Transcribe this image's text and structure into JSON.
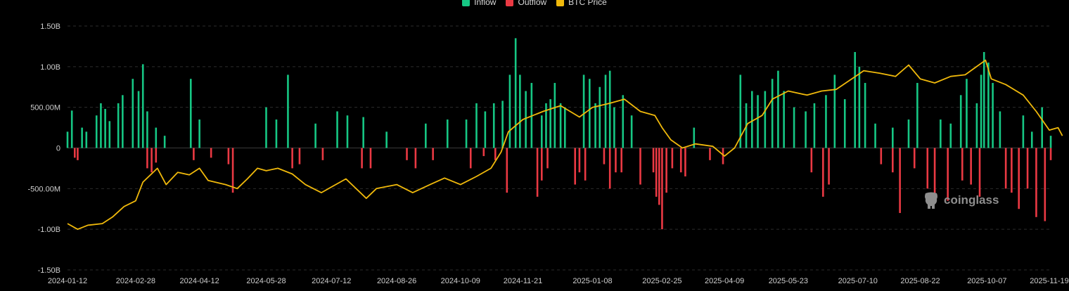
{
  "legend": [
    {
      "label": "Inflow",
      "color": "#16c784"
    },
    {
      "label": "Outflow",
      "color": "#ea3943"
    },
    {
      "label": "BTC Price",
      "color": "#f0b90b"
    }
  ],
  "watermark": {
    "text": "coinglass",
    "icon": "coinglass-logo-icon"
  },
  "chart_data": {
    "type": "bar",
    "title": "",
    "xlabel": "",
    "ylabel": "",
    "ylim": [
      -1.5,
      1.5
    ],
    "y_unit": "B",
    "yticks": [
      {
        "value": 1.5,
        "label": "1.50B"
      },
      {
        "value": 1.0,
        "label": "1.00B"
      },
      {
        "value": 0.5,
        "label": "500.00M"
      },
      {
        "value": 0,
        "label": "0"
      },
      {
        "value": -0.5,
        "label": "-500.00M"
      },
      {
        "value": -1.0,
        "label": "-1.00B"
      },
      {
        "value": -1.5,
        "label": "-1.50B"
      }
    ],
    "xticks": [
      "2024-01-12",
      "2024-02-28",
      "2024-04-12",
      "2024-05-28",
      "2024-07-12",
      "2024-08-26",
      "2024-10-09",
      "2024-11-21",
      "2025-01-08",
      "2025-02-25",
      "2025-04-09",
      "2025-05-23",
      "2025-07-10",
      "2025-08-22",
      "2025-10-07",
      "2025-11-19"
    ],
    "grid": true,
    "legend_position": "top-center",
    "series": [
      {
        "name": "Inflow",
        "color": "#16c784",
        "points": [
          [
            "2024-01-12",
            0.2
          ],
          [
            "2024-01-15",
            0.46
          ],
          [
            "2024-01-22",
            0.25
          ],
          [
            "2024-01-25",
            0.2
          ],
          [
            "2024-02-01",
            0.4
          ],
          [
            "2024-02-04",
            0.55
          ],
          [
            "2024-02-07",
            0.48
          ],
          [
            "2024-02-10",
            0.33
          ],
          [
            "2024-02-16",
            0.55
          ],
          [
            "2024-02-19",
            0.65
          ],
          [
            "2024-02-26",
            0.85
          ],
          [
            "2024-03-01",
            0.7
          ],
          [
            "2024-03-04",
            1.03
          ],
          [
            "2024-03-07",
            0.45
          ],
          [
            "2024-03-13",
            0.25
          ],
          [
            "2024-03-19",
            0.15
          ],
          [
            "2024-04-06",
            0.85
          ],
          [
            "2024-04-12",
            0.35
          ],
          [
            "2024-05-28",
            0.5
          ],
          [
            "2024-06-04",
            0.35
          ],
          [
            "2024-06-12",
            0.9
          ],
          [
            "2024-07-01",
            0.3
          ],
          [
            "2024-07-16",
            0.45
          ],
          [
            "2024-07-23",
            0.4
          ],
          [
            "2024-08-03",
            0.38
          ],
          [
            "2024-08-19",
            0.2
          ],
          [
            "2024-09-15",
            0.3
          ],
          [
            "2024-09-30",
            0.35
          ],
          [
            "2024-10-13",
            0.35
          ],
          [
            "2024-10-20",
            0.55
          ],
          [
            "2024-10-26",
            0.45
          ],
          [
            "2024-11-01",
            0.55
          ],
          [
            "2024-11-07",
            0.58
          ],
          [
            "2024-11-12",
            0.9
          ],
          [
            "2024-11-16",
            1.35
          ],
          [
            "2024-11-19",
            0.9
          ],
          [
            "2024-11-23",
            0.7
          ],
          [
            "2024-11-27",
            0.8
          ],
          [
            "2024-12-04",
            0.4
          ],
          [
            "2024-12-07",
            0.55
          ],
          [
            "2024-12-10",
            0.6
          ],
          [
            "2024-12-13",
            0.8
          ],
          [
            "2024-12-17",
            0.55
          ],
          [
            "2024-12-20",
            0.5
          ],
          [
            "2025-01-02",
            0.9
          ],
          [
            "2025-01-06",
            0.85
          ],
          [
            "2025-01-10",
            0.55
          ],
          [
            "2025-01-13",
            0.75
          ],
          [
            "2025-01-17",
            0.9
          ],
          [
            "2025-01-20",
            0.95
          ],
          [
            "2025-01-23",
            0.5
          ],
          [
            "2025-01-29",
            0.65
          ],
          [
            "2025-02-04",
            0.4
          ],
          [
            "2025-03-19",
            0.25
          ],
          [
            "2025-04-20",
            0.9
          ],
          [
            "2025-04-24",
            0.55
          ],
          [
            "2025-04-28",
            0.7
          ],
          [
            "2025-05-02",
            0.65
          ],
          [
            "2025-05-07",
            0.7
          ],
          [
            "2025-05-12",
            0.85
          ],
          [
            "2025-05-16",
            0.95
          ],
          [
            "2025-05-20",
            0.7
          ],
          [
            "2025-05-27",
            0.5
          ],
          [
            "2025-06-04",
            0.45
          ],
          [
            "2025-06-10",
            0.55
          ],
          [
            "2025-06-18",
            0.65
          ],
          [
            "2025-06-24",
            0.9
          ],
          [
            "2025-07-01",
            0.6
          ],
          [
            "2025-07-08",
            1.18
          ],
          [
            "2025-07-11",
            1.0
          ],
          [
            "2025-07-15",
            0.8
          ],
          [
            "2025-07-22",
            0.3
          ],
          [
            "2025-08-03",
            0.25
          ],
          [
            "2025-08-14",
            0.35
          ],
          [
            "2025-08-20",
            0.8
          ],
          [
            "2025-09-05",
            0.35
          ],
          [
            "2025-09-12",
            0.3
          ],
          [
            "2025-09-19",
            0.65
          ],
          [
            "2025-09-23",
            0.85
          ],
          [
            "2025-09-30",
            0.55
          ],
          [
            "2025-10-03",
            0.9
          ],
          [
            "2025-10-05",
            1.18
          ],
          [
            "2025-10-08",
            1.05
          ],
          [
            "2025-10-11",
            0.8
          ],
          [
            "2025-10-16",
            0.45
          ],
          [
            "2025-11-01",
            0.4
          ],
          [
            "2025-11-07",
            0.2
          ],
          [
            "2025-11-14",
            0.5
          ],
          [
            "2025-11-20",
            0.15
          ]
        ]
      },
      {
        "name": "Outflow",
        "color": "#ea3943",
        "points": [
          [
            "2024-01-17",
            -0.12
          ],
          [
            "2024-01-19",
            -0.15
          ],
          [
            "2024-03-07",
            -0.25
          ],
          [
            "2024-03-10",
            -0.3
          ],
          [
            "2024-03-13",
            -0.18
          ],
          [
            "2024-04-08",
            -0.15
          ],
          [
            "2024-04-20",
            -0.12
          ],
          [
            "2024-05-02",
            -0.2
          ],
          [
            "2024-05-05",
            -0.55
          ],
          [
            "2024-06-15",
            -0.25
          ],
          [
            "2024-06-20",
            -0.2
          ],
          [
            "2024-07-06",
            -0.15
          ],
          [
            "2024-08-02",
            -0.25
          ],
          [
            "2024-08-08",
            -0.25
          ],
          [
            "2024-09-02",
            -0.15
          ],
          [
            "2024-09-08",
            -0.25
          ],
          [
            "2024-09-20",
            -0.15
          ],
          [
            "2024-10-16",
            -0.25
          ],
          [
            "2024-10-25",
            -0.1
          ],
          [
            "2024-11-02",
            -0.15
          ],
          [
            "2024-11-10",
            -0.55
          ],
          [
            "2024-12-01",
            -0.6
          ],
          [
            "2024-12-04",
            -0.4
          ],
          [
            "2024-12-08",
            -0.25
          ],
          [
            "2024-12-27",
            -0.45
          ],
          [
            "2024-12-30",
            -0.3
          ],
          [
            "2025-01-03",
            -0.4
          ],
          [
            "2025-01-16",
            -0.2
          ],
          [
            "2025-01-20",
            -0.5
          ],
          [
            "2025-01-24",
            -0.3
          ],
          [
            "2025-01-28",
            -0.3
          ],
          [
            "2025-02-10",
            -0.45
          ],
          [
            "2025-02-19",
            -0.3
          ],
          [
            "2025-02-21",
            -0.6
          ],
          [
            "2025-02-23",
            -0.7
          ],
          [
            "2025-02-25",
            -1.0
          ],
          [
            "2025-02-28",
            -0.55
          ],
          [
            "2025-03-04",
            -0.25
          ],
          [
            "2025-03-10",
            -0.3
          ],
          [
            "2025-03-13",
            -0.35
          ],
          [
            "2025-03-30",
            -0.15
          ],
          [
            "2025-04-08",
            -0.2
          ],
          [
            "2025-06-08",
            -0.3
          ],
          [
            "2025-06-16",
            -0.6
          ],
          [
            "2025-06-20",
            -0.45
          ],
          [
            "2025-07-26",
            -0.2
          ],
          [
            "2025-08-03",
            -0.3
          ],
          [
            "2025-08-08",
            -0.8
          ],
          [
            "2025-08-18",
            -0.25
          ],
          [
            "2025-08-27",
            -0.5
          ],
          [
            "2025-09-01",
            -0.6
          ],
          [
            "2025-09-10",
            -0.65
          ],
          [
            "2025-09-20",
            -0.4
          ],
          [
            "2025-09-26",
            -0.45
          ],
          [
            "2025-10-02",
            -0.6
          ],
          [
            "2025-10-20",
            -0.5
          ],
          [
            "2025-10-24",
            -0.55
          ],
          [
            "2025-10-29",
            -0.75
          ],
          [
            "2025-11-04",
            -0.5
          ],
          [
            "2025-11-10",
            -0.85
          ],
          [
            "2025-11-16",
            -0.9
          ],
          [
            "2025-11-20",
            -0.15
          ]
        ]
      },
      {
        "name": "BTC Price",
        "color": "#f0b90b",
        "points": [
          [
            "2024-01-12",
            -0.93
          ],
          [
            "2024-01-19",
            -1.0
          ],
          [
            "2024-01-26",
            -0.95
          ],
          [
            "2024-02-05",
            -0.93
          ],
          [
            "2024-02-12",
            -0.85
          ],
          [
            "2024-02-20",
            -0.72
          ],
          [
            "2024-02-28",
            -0.65
          ],
          [
            "2024-03-04",
            -0.42
          ],
          [
            "2024-03-14",
            -0.25
          ],
          [
            "2024-03-20",
            -0.45
          ],
          [
            "2024-03-28",
            -0.3
          ],
          [
            "2024-04-05",
            -0.33
          ],
          [
            "2024-04-12",
            -0.25
          ],
          [
            "2024-04-18",
            -0.4
          ],
          [
            "2024-04-30",
            -0.45
          ],
          [
            "2024-05-08",
            -0.5
          ],
          [
            "2024-05-15",
            -0.38
          ],
          [
            "2024-05-22",
            -0.25
          ],
          [
            "2024-05-28",
            -0.28
          ],
          [
            "2024-06-05",
            -0.25
          ],
          [
            "2024-06-15",
            -0.32
          ],
          [
            "2024-06-24",
            -0.45
          ],
          [
            "2024-07-05",
            -0.55
          ],
          [
            "2024-07-12",
            -0.48
          ],
          [
            "2024-07-22",
            -0.38
          ],
          [
            "2024-08-05",
            -0.62
          ],
          [
            "2024-08-12",
            -0.5
          ],
          [
            "2024-08-26",
            -0.45
          ],
          [
            "2024-09-06",
            -0.55
          ],
          [
            "2024-09-18",
            -0.45
          ],
          [
            "2024-09-28",
            -0.37
          ],
          [
            "2024-10-09",
            -0.45
          ],
          [
            "2024-10-20",
            -0.35
          ],
          [
            "2024-10-30",
            -0.25
          ],
          [
            "2024-11-06",
            -0.05
          ],
          [
            "2024-11-11",
            0.2
          ],
          [
            "2024-11-21",
            0.35
          ],
          [
            "2024-12-05",
            0.45
          ],
          [
            "2024-12-17",
            0.52
          ],
          [
            "2024-12-30",
            0.38
          ],
          [
            "2025-01-08",
            0.5
          ],
          [
            "2025-01-20",
            0.55
          ],
          [
            "2025-01-30",
            0.6
          ],
          [
            "2025-02-10",
            0.45
          ],
          [
            "2025-02-20",
            0.4
          ],
          [
            "2025-02-25",
            0.25
          ],
          [
            "2025-03-03",
            0.1
          ],
          [
            "2025-03-11",
            0.0
          ],
          [
            "2025-03-20",
            0.05
          ],
          [
            "2025-04-01",
            0.02
          ],
          [
            "2025-04-09",
            -0.1
          ],
          [
            "2025-04-16",
            0.0
          ],
          [
            "2025-04-25",
            0.3
          ],
          [
            "2025-05-05",
            0.4
          ],
          [
            "2025-05-12",
            0.6
          ],
          [
            "2025-05-23",
            0.7
          ],
          [
            "2025-06-05",
            0.65
          ],
          [
            "2025-06-15",
            0.7
          ],
          [
            "2025-06-25",
            0.72
          ],
          [
            "2025-07-10",
            0.9
          ],
          [
            "2025-07-14",
            0.95
          ],
          [
            "2025-07-25",
            0.92
          ],
          [
            "2025-08-05",
            0.88
          ],
          [
            "2025-08-14",
            1.02
          ],
          [
            "2025-08-22",
            0.85
          ],
          [
            "2025-09-01",
            0.8
          ],
          [
            "2025-09-12",
            0.88
          ],
          [
            "2025-09-22",
            0.9
          ],
          [
            "2025-10-06",
            1.08
          ],
          [
            "2025-10-10",
            0.85
          ],
          [
            "2025-10-20",
            0.78
          ],
          [
            "2025-11-01",
            0.65
          ],
          [
            "2025-11-10",
            0.45
          ],
          [
            "2025-11-19",
            0.22
          ],
          [
            "2025-11-25",
            0.25
          ],
          [
            "2025-11-28",
            0.15
          ]
        ]
      }
    ]
  }
}
